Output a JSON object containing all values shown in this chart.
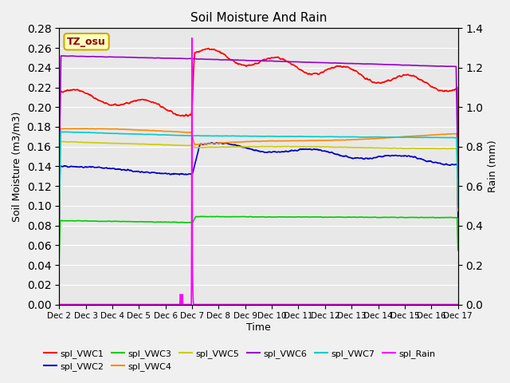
{
  "title": "Soil Moisture And Rain",
  "xlabel": "Time",
  "ylabel_left": "Soil Moisture (m3/m3)",
  "ylabel_right": "Rain (mm)",
  "annotation": "TZ_osu",
  "x_tick_labels": [
    "Dec 2",
    "Dec 3",
    "Dec 4",
    "Dec 5",
    "Dec 6",
    "Dec 7",
    "Dec 8",
    "Dec 9",
    "Dec 10",
    "Dec 11",
    "Dec 12",
    "Dec 13",
    "Dec 14",
    "Dec 15",
    "Dec 16",
    "Dec 17"
  ],
  "ylim_left": [
    0.0,
    0.28
  ],
  "ylim_right": [
    0.0,
    1.4
  ],
  "background_color": "#e8e8e8",
  "series": {
    "spl_VWC1": {
      "color": "#ff0000",
      "lw": 1.2
    },
    "spl_VWC2": {
      "color": "#0000cc",
      "lw": 1.2
    },
    "spl_VWC3": {
      "color": "#00cc00",
      "lw": 1.2
    },
    "spl_VWC4": {
      "color": "#ff8800",
      "lw": 1.2
    },
    "spl_VWC5": {
      "color": "#cccc00",
      "lw": 1.2
    },
    "spl_VWC6": {
      "color": "#9900cc",
      "lw": 1.2
    },
    "spl_VWC7": {
      "color": "#00cccc",
      "lw": 1.2
    },
    "spl_Rain": {
      "color": "#ff00ff",
      "lw": 1.2
    }
  }
}
